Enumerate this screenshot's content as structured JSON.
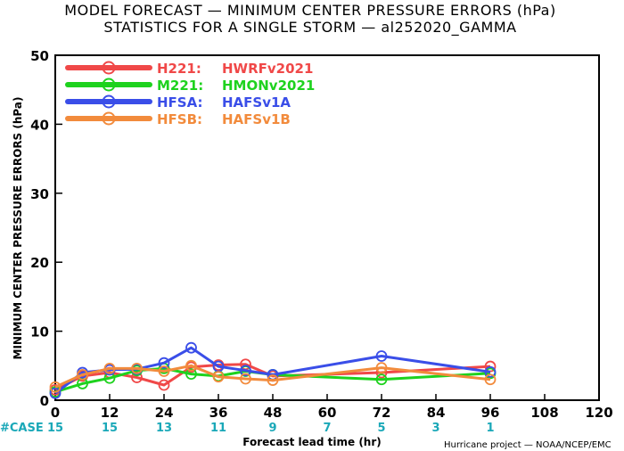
{
  "title_line1": "MODEL FORECAST — MINIMUM CENTER PRESSURE ERRORS (hPa)",
  "title_line2": "STATISTICS FOR A SINGLE STORM — al252020_GAMMA",
  "credit": "Hurricane project — NOAA/NCEP/EMC",
  "case_label": "#CASE",
  "chart_data": {
    "type": "line",
    "xlabel": "Forecast lead time (hr)",
    "ylabel": "MINIMUM CENTER PRESSURE ERRORS (hPa)",
    "xlim": [
      0,
      120
    ],
    "ylim": [
      0,
      50
    ],
    "xticks": [
      0,
      12,
      24,
      36,
      48,
      60,
      72,
      84,
      96,
      108,
      120
    ],
    "yticks": [
      0,
      10,
      20,
      30,
      40,
      50
    ],
    "grid": false,
    "legend_position": "top-left",
    "cases": {
      "x": [
        0,
        12,
        24,
        36,
        48,
        60,
        72,
        84,
        96
      ],
      "values": [
        "15",
        "15",
        "13",
        "11",
        "9",
        "7",
        "5",
        "3",
        "1"
      ]
    },
    "series": [
      {
        "name": "H221:",
        "desc": "HWRFv2021",
        "color": "#f04848",
        "x": [
          0,
          6,
          12,
          18,
          24,
          30,
          36,
          42,
          48,
          72,
          96
        ],
        "y": [
          1.5,
          3.5,
          4.0,
          3.3,
          2.2,
          4.8,
          5.1,
          5.2,
          3.5,
          4.0,
          4.9
        ]
      },
      {
        "name": "M221:",
        "desc": "HMONv2021",
        "color": "#1ed21e",
        "x": [
          0,
          6,
          12,
          18,
          24,
          30,
          36,
          42,
          48,
          72,
          96
        ],
        "y": [
          1.2,
          2.4,
          3.2,
          4.3,
          4.6,
          3.8,
          3.5,
          4.2,
          3.7,
          3.0,
          3.9
        ]
      },
      {
        "name": "HFSA:",
        "desc": "HAFSv1A",
        "color": "#3a4ee8",
        "x": [
          0,
          6,
          12,
          18,
          24,
          30,
          36,
          42,
          48,
          72,
          96
        ],
        "y": [
          1.0,
          4.0,
          4.4,
          4.5,
          5.4,
          7.6,
          4.9,
          4.3,
          3.7,
          6.4,
          4.1
        ]
      },
      {
        "name": "HFSB:",
        "desc": "HAFSv1B",
        "color": "#f28b3c",
        "x": [
          0,
          6,
          12,
          18,
          24,
          30,
          36,
          42,
          48,
          72,
          96
        ],
        "y": [
          1.9,
          3.7,
          4.6,
          4.6,
          4.2,
          5.0,
          3.4,
          3.1,
          2.9,
          4.7,
          3.0
        ]
      }
    ]
  }
}
